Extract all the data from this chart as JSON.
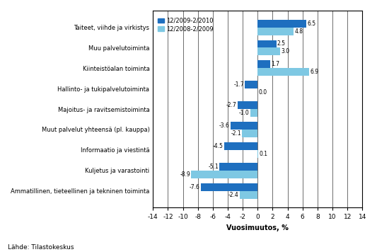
{
  "categories": [
    "Ammatillinen, tieteellinen ja tekninen toiminta",
    "Kuljetus ja varastointi",
    "Informaatio ja viestintä",
    "Muut palvelut yhteensä (pl. kauppa)",
    "Majoitus- ja ravitsemistoiminta",
    "Hallinto- ja tukipalvelutoiminta",
    "Kiinteistöalan toiminta",
    "Muu palvelutoiminta",
    "Taiteet, viihde ja virkistys"
  ],
  "series1_label": "12/2009-2/2010",
  "series2_label": "12/2008-2/2009",
  "series1_values": [
    -7.6,
    -5.1,
    -4.5,
    -3.6,
    -2.7,
    -1.7,
    1.7,
    2.5,
    6.5
  ],
  "series2_values": [
    -2.4,
    -8.9,
    0.1,
    -2.1,
    -1.0,
    0.0,
    6.9,
    3.0,
    4.8
  ],
  "color1": "#1E6FBF",
  "color2": "#7EC8E3",
  "xlabel": "Vuosimuutos, %",
  "source": "Lähde: Tilastokeskus",
  "xlim": [
    -14,
    14
  ],
  "xticks": [
    -14,
    -12,
    -10,
    -8,
    -6,
    -4,
    -2,
    0,
    2,
    4,
    6,
    8,
    10,
    12,
    14
  ]
}
